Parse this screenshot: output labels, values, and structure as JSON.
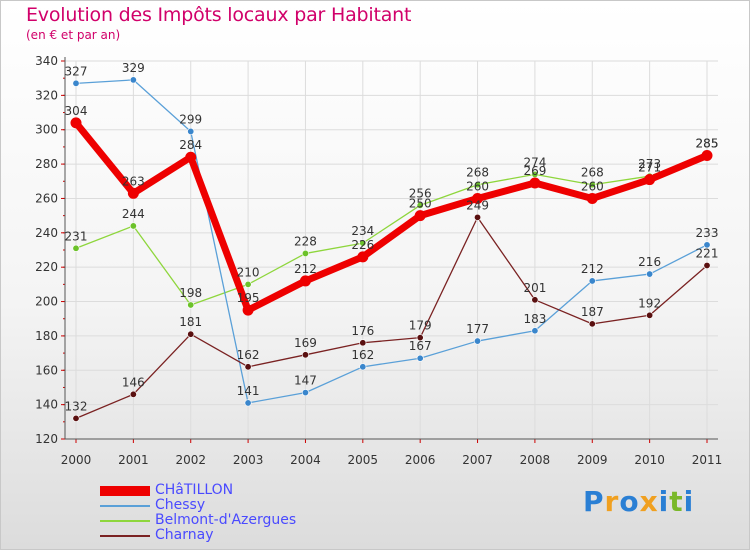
{
  "header": {
    "title": "Evolution des Impôts locaux par Habitant",
    "subtitle": "(en € et par an)"
  },
  "logo": {
    "letters": [
      "P",
      "r",
      "o",
      "x",
      "i",
      "t",
      "i"
    ],
    "colors": [
      "#2a7fd4",
      "#f0a020",
      "#2a7fd4",
      "#f0a020",
      "#2a7fd4",
      "#7ab82a",
      "#2a7fd4"
    ]
  },
  "chart_data": {
    "type": "line",
    "title": "Evolution des Impôts locaux par Habitant",
    "subtitle": "(en € et par an)",
    "xlabel": "",
    "ylabel": "",
    "categories": [
      "2000",
      "2001",
      "2002",
      "2003",
      "2004",
      "2005",
      "2006",
      "2007",
      "2008",
      "2009",
      "2010",
      "2011"
    ],
    "ylim": [
      120,
      340
    ],
    "yticks": [
      120,
      140,
      160,
      180,
      200,
      220,
      240,
      260,
      280,
      300,
      320,
      340
    ],
    "grid": true,
    "legend_position": "bottom-left",
    "series": [
      {
        "name": "Belmont-d'Azergues",
        "color": "#8ed63c",
        "marker": "#6cc22a",
        "style": "thin",
        "values": [
          231,
          244,
          198,
          210,
          228,
          234,
          256,
          268,
          274,
          268,
          273,
          285
        ]
      },
      {
        "name": "Chessy",
        "color": "#5aa0d8",
        "marker": "#3a86cc",
        "style": "thin",
        "values": [
          327,
          329,
          299,
          141,
          147,
          162,
          167,
          177,
          183,
          212,
          216,
          233
        ]
      },
      {
        "name": "Charnay",
        "color": "#7a2222",
        "marker": "#5a1010",
        "style": "thin",
        "values": [
          132,
          146,
          181,
          162,
          169,
          176,
          179,
          249,
          201,
          187,
          192,
          221
        ]
      },
      {
        "name": "CHâTILLON",
        "color": "#ee0000",
        "marker": "#ee0000",
        "style": "thick",
        "values": [
          304,
          263,
          284,
          195,
          212,
          226,
          250,
          260,
          269,
          260,
          271,
          285
        ]
      }
    ],
    "legend_order": [
      "CHâTILLON",
      "Chessy",
      "Belmont-d'Azergues",
      "Charnay"
    ]
  }
}
